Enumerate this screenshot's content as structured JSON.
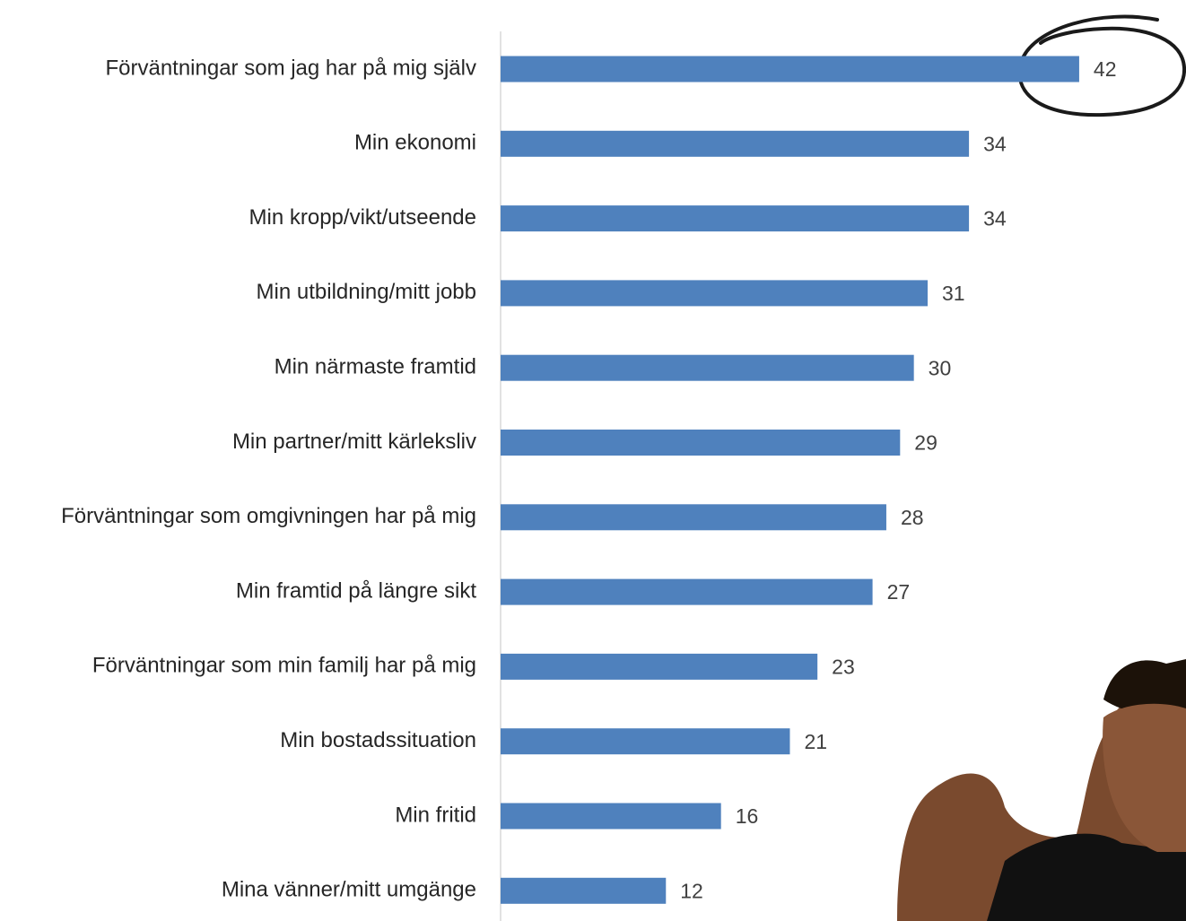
{
  "chart_data": {
    "type": "bar",
    "orientation": "horizontal",
    "categories": [
      "Förväntningar som jag har på mig själv",
      "Min ekonomi",
      "Min kropp/vikt/utseende",
      "Min utbildning/mitt jobb",
      "Min närmaste framtid",
      "Min partner/mitt kärleksliv",
      "Förväntningar som omgivningen har på mig",
      "Min framtid på längre sikt",
      "Förväntningar som min familj har på mig",
      "Min bostadssituation",
      "Min fritid",
      "Mina vänner/mitt umgänge"
    ],
    "values": [
      42,
      34,
      34,
      31,
      30,
      29,
      28,
      27,
      23,
      21,
      16,
      12
    ],
    "color": "#4f81bd",
    "xlim": [
      0,
      45
    ]
  }
}
